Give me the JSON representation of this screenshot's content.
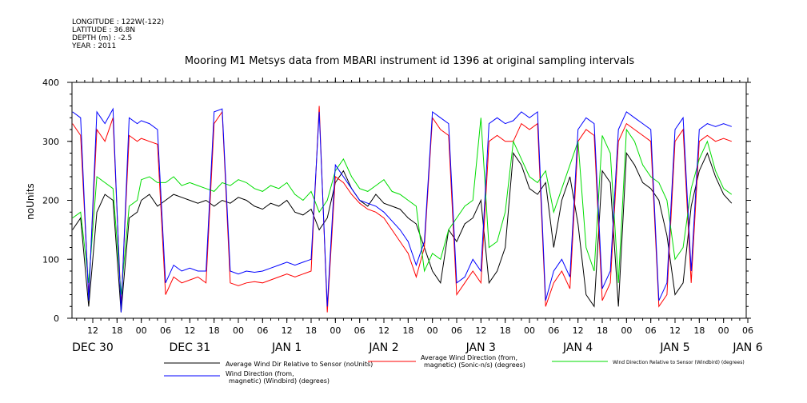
{
  "header": {
    "longitude": "LONGITUDE : 122W(-122)",
    "latitude": "LATITUDE : 36.8N",
    "depth": "DEPTH (m) : -2.5",
    "year": "YEAR : 2011"
  },
  "chart_data": {
    "type": "line",
    "title": "Mooring M1 Metsys data from MBARI instrument id 1396 at original sampling intervals",
    "ylabel": "noUnits",
    "xlabel": "",
    "ylim": [
      0,
      400
    ],
    "yticks": [
      "0",
      "100",
      "200",
      "300",
      "400"
    ],
    "xlim_hours": [
      -17,
      145
    ],
    "hour_ticks": [
      {
        "h": -12,
        "label": "12"
      },
      {
        "h": -6,
        "label": "18"
      },
      {
        "h": 0,
        "label": "00"
      },
      {
        "h": 6,
        "label": "06"
      },
      {
        "h": 12,
        "label": "12"
      },
      {
        "h": 18,
        "label": "18"
      },
      {
        "h": 24,
        "label": "00"
      },
      {
        "h": 30,
        "label": "06"
      },
      {
        "h": 36,
        "label": "12"
      },
      {
        "h": 42,
        "label": "18"
      },
      {
        "h": 48,
        "label": "00"
      },
      {
        "h": 54,
        "label": "06"
      },
      {
        "h": 60,
        "label": "12"
      },
      {
        "h": 66,
        "label": "18"
      },
      {
        "h": 72,
        "label": "00"
      },
      {
        "h": 78,
        "label": "06"
      },
      {
        "h": 84,
        "label": "12"
      },
      {
        "h": 90,
        "label": "18"
      },
      {
        "h": 96,
        "label": "00"
      },
      {
        "h": 102,
        "label": "06"
      },
      {
        "h": 108,
        "label": "12"
      },
      {
        "h": 114,
        "label": "18"
      },
      {
        "h": 120,
        "label": "00"
      },
      {
        "h": 126,
        "label": "06"
      },
      {
        "h": 132,
        "label": "12"
      },
      {
        "h": 138,
        "label": "18"
      },
      {
        "h": 144,
        "label": "00"
      },
      {
        "h": 150,
        "label": "06"
      }
    ],
    "day_labels": [
      {
        "h": -12,
        "label": "DEC 30"
      },
      {
        "h": 12,
        "label": "DEC 31"
      },
      {
        "h": 36,
        "label": "JAN  1"
      },
      {
        "h": 60,
        "label": "JAN  2"
      },
      {
        "h": 84,
        "label": "JAN  3"
      },
      {
        "h": 108,
        "label": "JAN  4"
      },
      {
        "h": 132,
        "label": "JAN  5"
      },
      {
        "h": 150,
        "label": "JAN  6"
      }
    ],
    "series": [
      {
        "name": "Average Wind Dir Relative to Sensor (noUnits)",
        "color": "#000000",
        "x": [
          -17,
          -15,
          -13,
          -11,
          -9,
          -7,
          -5,
          -3,
          -1,
          0,
          2,
          4,
          6,
          8,
          10,
          12,
          14,
          16,
          18,
          20,
          22,
          24,
          26,
          28,
          30,
          32,
          34,
          36,
          38,
          40,
          42,
          44,
          46,
          48,
          50,
          52,
          54,
          56,
          58,
          60,
          62,
          64,
          66,
          68,
          70,
          72,
          74,
          76,
          78,
          80,
          82,
          84,
          86,
          88,
          90,
          92,
          94,
          96,
          98,
          100,
          102,
          104,
          106,
          108,
          110,
          112,
          114,
          116,
          118,
          120,
          122,
          124,
          126,
          128,
          130,
          132,
          134,
          136,
          138,
          140,
          142,
          144,
          146
        ],
        "y": [
          150,
          170,
          20,
          180,
          210,
          200,
          10,
          170,
          180,
          200,
          210,
          190,
          200,
          210,
          205,
          200,
          195,
          200,
          190,
          200,
          195,
          205,
          200,
          190,
          185,
          195,
          190,
          200,
          180,
          175,
          185,
          150,
          170,
          230,
          250,
          220,
          200,
          190,
          210,
          195,
          190,
          185,
          170,
          160,
          120,
          80,
          60,
          150,
          130,
          160,
          170,
          200,
          60,
          80,
          120,
          280,
          260,
          220,
          210,
          230,
          120,
          200,
          240,
          160,
          40,
          20,
          250,
          230,
          20,
          280,
          260,
          230,
          220,
          200,
          140,
          40,
          60,
          190,
          250,
          280,
          240,
          210,
          195
        ]
      },
      {
        "name": "Average Wind Direction (from, magnetic) (Sonic-n/s) (degrees)",
        "color": "#ff0000",
        "x": [
          -17,
          -15,
          -13,
          -11,
          -9,
          -7,
          -5,
          -3,
          -1,
          0,
          2,
          4,
          6,
          8,
          10,
          12,
          14,
          16,
          18,
          20,
          22,
          24,
          26,
          28,
          30,
          32,
          34,
          36,
          38,
          40,
          42,
          44,
          46,
          48,
          50,
          52,
          54,
          56,
          58,
          60,
          62,
          64,
          66,
          68,
          70,
          72,
          74,
          76,
          78,
          80,
          82,
          84,
          86,
          88,
          90,
          92,
          94,
          96,
          98,
          100,
          102,
          104,
          106,
          108,
          110,
          112,
          114,
          116,
          118,
          120,
          122,
          124,
          126,
          128,
          130,
          132,
          134,
          136,
          138,
          140,
          142,
          144,
          146
        ],
        "y": [
          330,
          310,
          40,
          320,
          300,
          340,
          20,
          310,
          300,
          305,
          300,
          295,
          40,
          70,
          60,
          65,
          70,
          60,
          330,
          350,
          60,
          55,
          60,
          62,
          60,
          65,
          70,
          75,
          70,
          75,
          80,
          360,
          10,
          240,
          230,
          210,
          195,
          185,
          180,
          170,
          150,
          130,
          110,
          70,
          120,
          340,
          320,
          310,
          40,
          60,
          80,
          60,
          300,
          310,
          300,
          300,
          330,
          320,
          330,
          20,
          60,
          80,
          50,
          300,
          320,
          310,
          30,
          60,
          300,
          330,
          320,
          310,
          300,
          20,
          40,
          300,
          320,
          60,
          300,
          310,
          300,
          305,
          300
        ]
      },
      {
        "name": "Wind Direction Relative to Sensor (Windbird) (degrees)",
        "color": "#00dd00",
        "x": [
          -17,
          -15,
          -13,
          -11,
          -9,
          -7,
          -5,
          -3,
          -1,
          0,
          2,
          4,
          6,
          8,
          10,
          12,
          14,
          16,
          18,
          20,
          22,
          24,
          26,
          28,
          30,
          32,
          34,
          36,
          38,
          40,
          42,
          44,
          46,
          48,
          50,
          52,
          54,
          56,
          58,
          60,
          62,
          64,
          66,
          68,
          70,
          72,
          74,
          76,
          78,
          80,
          82,
          84,
          86,
          88,
          90,
          92,
          94,
          96,
          98,
          100,
          102,
          104,
          106,
          108,
          110,
          112,
          114,
          116,
          118,
          120,
          122,
          124,
          126,
          128,
          130,
          132,
          134,
          136,
          138,
          140,
          142,
          144,
          146
        ],
        "y": [
          170,
          180,
          60,
          240,
          230,
          220,
          40,
          190,
          200,
          235,
          240,
          230,
          230,
          240,
          225,
          230,
          225,
          220,
          215,
          230,
          225,
          235,
          230,
          220,
          215,
          225,
          220,
          230,
          210,
          200,
          215,
          180,
          200,
          250,
          270,
          240,
          220,
          215,
          225,
          235,
          215,
          210,
          200,
          190,
          80,
          110,
          100,
          150,
          170,
          190,
          200,
          340,
          120,
          130,
          180,
          300,
          270,
          240,
          230,
          250,
          180,
          220,
          260,
          300,
          120,
          80,
          310,
          280,
          60,
          320,
          300,
          260,
          240,
          230,
          200,
          100,
          120,
          220,
          270,
          300,
          250,
          220,
          210
        ]
      },
      {
        "name": "Wind Direction (from, magnetic) (Windbird) (degrees)",
        "color": "#0000ff",
        "x": [
          -17,
          -15,
          -13,
          -11,
          -9,
          -7,
          -5,
          -3,
          -1,
          0,
          2,
          4,
          6,
          8,
          10,
          12,
          14,
          16,
          18,
          20,
          22,
          24,
          26,
          28,
          30,
          32,
          34,
          36,
          38,
          40,
          42,
          44,
          46,
          48,
          50,
          52,
          54,
          56,
          58,
          60,
          62,
          64,
          66,
          68,
          70,
          72,
          74,
          76,
          78,
          80,
          82,
          84,
          86,
          88,
          90,
          92,
          94,
          96,
          98,
          100,
          102,
          104,
          106,
          108,
          110,
          112,
          114,
          116,
          118,
          120,
          122,
          124,
          126,
          128,
          130,
          132,
          134,
          136,
          138,
          140,
          142,
          144,
          146
        ],
        "y": [
          350,
          340,
          30,
          350,
          330,
          355,
          10,
          340,
          330,
          335,
          330,
          320,
          60,
          90,
          80,
          85,
          80,
          80,
          350,
          355,
          80,
          75,
          80,
          78,
          80,
          85,
          90,
          95,
          90,
          95,
          100,
          350,
          20,
          260,
          240,
          220,
          200,
          195,
          190,
          180,
          165,
          150,
          130,
          90,
          130,
          350,
          340,
          330,
          60,
          70,
          100,
          80,
          330,
          340,
          330,
          335,
          350,
          340,
          350,
          30,
          80,
          100,
          70,
          320,
          340,
          330,
          50,
          80,
          320,
          350,
          340,
          330,
          320,
          30,
          60,
          320,
          340,
          80,
          320,
          330,
          325,
          330,
          325
        ]
      }
    ],
    "legend": [
      {
        "label_lines": [
          "Average Wind Dir Relative to Sensor (noUnits)"
        ],
        "color": "#000000"
      },
      {
        "label_lines": [
          "Average Wind Direction (from,",
          "magnetic) (Sonic-n/s) (degrees)"
        ],
        "color": "#ff0000"
      },
      {
        "label_lines": [
          "Wind Direction Relative to Sensor (Windbird) (degrees)"
        ],
        "color": "#00dd00"
      },
      {
        "label_lines": [
          "Wind Direction (from,",
          "magnetic) (Windbird) (degrees)"
        ],
        "color": "#0000ff"
      }
    ]
  }
}
